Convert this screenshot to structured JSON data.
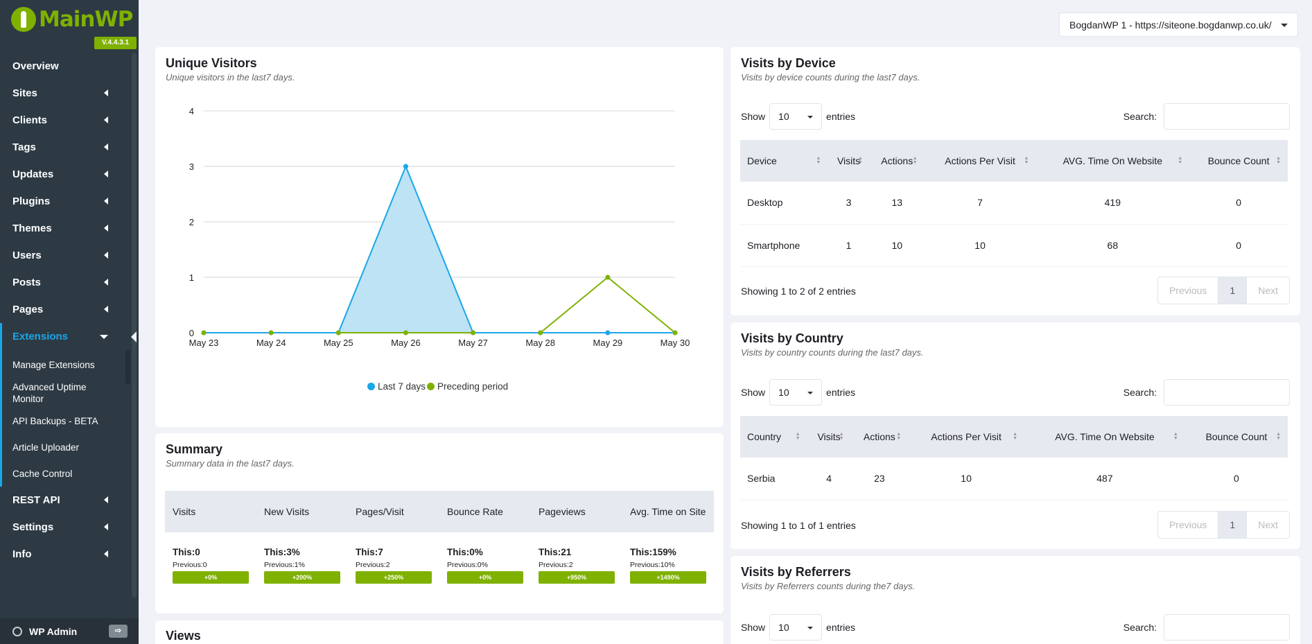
{
  "app": {
    "logo_text": "MainWP",
    "version": "V.4.4.3.1"
  },
  "sidebar": {
    "items": [
      {
        "label": "Overview"
      },
      {
        "label": "Sites"
      },
      {
        "label": "Clients"
      },
      {
        "label": "Tags"
      },
      {
        "label": "Updates"
      },
      {
        "label": "Plugins"
      },
      {
        "label": "Themes"
      },
      {
        "label": "Users"
      },
      {
        "label": "Posts"
      },
      {
        "label": "Pages"
      },
      {
        "label": "Extensions"
      }
    ],
    "sub_items": [
      {
        "label": "Manage Extensions"
      },
      {
        "label": "Advanced Uptime Monitor"
      },
      {
        "label": "API Backups - BETA"
      },
      {
        "label": "Article Uploader"
      },
      {
        "label": "Cache Control"
      }
    ],
    "bottom_items": [
      {
        "label": "REST API"
      },
      {
        "label": "Settings"
      },
      {
        "label": "Info"
      }
    ],
    "wp_admin": "WP Admin"
  },
  "site_selector": {
    "value": "BogdanWP 1 - https://siteone.bogdanwp.co.uk/"
  },
  "unique_visitors": {
    "title": "Unique Visitors",
    "subtitle": "Unique visitors in the last7 days."
  },
  "chart_data": {
    "type": "area",
    "categories": [
      "May 23",
      "May 24",
      "May 25",
      "May 26",
      "May 27",
      "May 28",
      "May 29",
      "May 30"
    ],
    "yticks": [
      0,
      1,
      2,
      3,
      4
    ],
    "ylim": [
      0,
      4
    ],
    "series": [
      {
        "name": "Last 7 days",
        "color": "#1aa7e7",
        "fill": "#bde3f5",
        "values": [
          0,
          0,
          0,
          3,
          0,
          0,
          0,
          0
        ]
      },
      {
        "name": "Preceding period",
        "color": "#7fb100",
        "values": [
          0,
          0,
          0,
          0,
          0,
          0,
          1,
          0
        ]
      }
    ],
    "legend": "bottom-center"
  },
  "summary": {
    "title": "Summary",
    "subtitle": "Summary data in the last7 days.",
    "columns": [
      "Visits",
      "New Visits",
      "Pages/Visit",
      "Bounce Rate",
      "Pageviews",
      "Avg. Time on Site"
    ],
    "this": [
      "This:0",
      "This:3%",
      "This:7",
      "This:0%",
      "This:21",
      "This:159%"
    ],
    "previous": [
      "Previous:0",
      "Previous:1%",
      "Previous:2",
      "Previous:0%",
      "Previous:2",
      "Previous:10%"
    ],
    "change": [
      "+0%",
      "+200%",
      "+250%",
      "+0%",
      "+950%",
      "+1490%"
    ]
  },
  "views": {
    "title": "Views"
  },
  "device": {
    "title": "Visits by Device",
    "subtitle": "Visits by device counts during the last7 days.",
    "show_label": "Show",
    "entries_value": "10",
    "entries_label": "entries",
    "search_label": "Search:",
    "columns": [
      "Device",
      "Visits",
      "Actions",
      "Actions Per Visit",
      "AVG. Time On Website",
      "Bounce Count"
    ],
    "rows": [
      [
        "Desktop",
        "3",
        "13",
        "7",
        "419",
        "0"
      ],
      [
        "Smartphone",
        "1",
        "10",
        "10",
        "68",
        "0"
      ]
    ],
    "info": "Showing 1 to 2 of 2 entries",
    "prev": "Previous",
    "page": "1",
    "next": "Next"
  },
  "country": {
    "title": "Visits by Country",
    "subtitle": "Visits by country counts during the last7 days.",
    "show_label": "Show",
    "entries_value": "10",
    "entries_label": "entries",
    "search_label": "Search:",
    "columns": [
      "Country",
      "Visits",
      "Actions",
      "Actions Per Visit",
      "AVG. Time On Website",
      "Bounce Count"
    ],
    "rows": [
      [
        "Serbia",
        "4",
        "23",
        "10",
        "487",
        "0"
      ]
    ],
    "info": "Showing 1 to 1 of 1 entries",
    "prev": "Previous",
    "page": "1",
    "next": "Next"
  },
  "referrers": {
    "title": "Visits by Referrers",
    "subtitle": "Visits by Referrers counts during the7 days.",
    "show_label": "Show",
    "entries_value": "10",
    "entries_label": "entries",
    "search_label": "Search:"
  }
}
